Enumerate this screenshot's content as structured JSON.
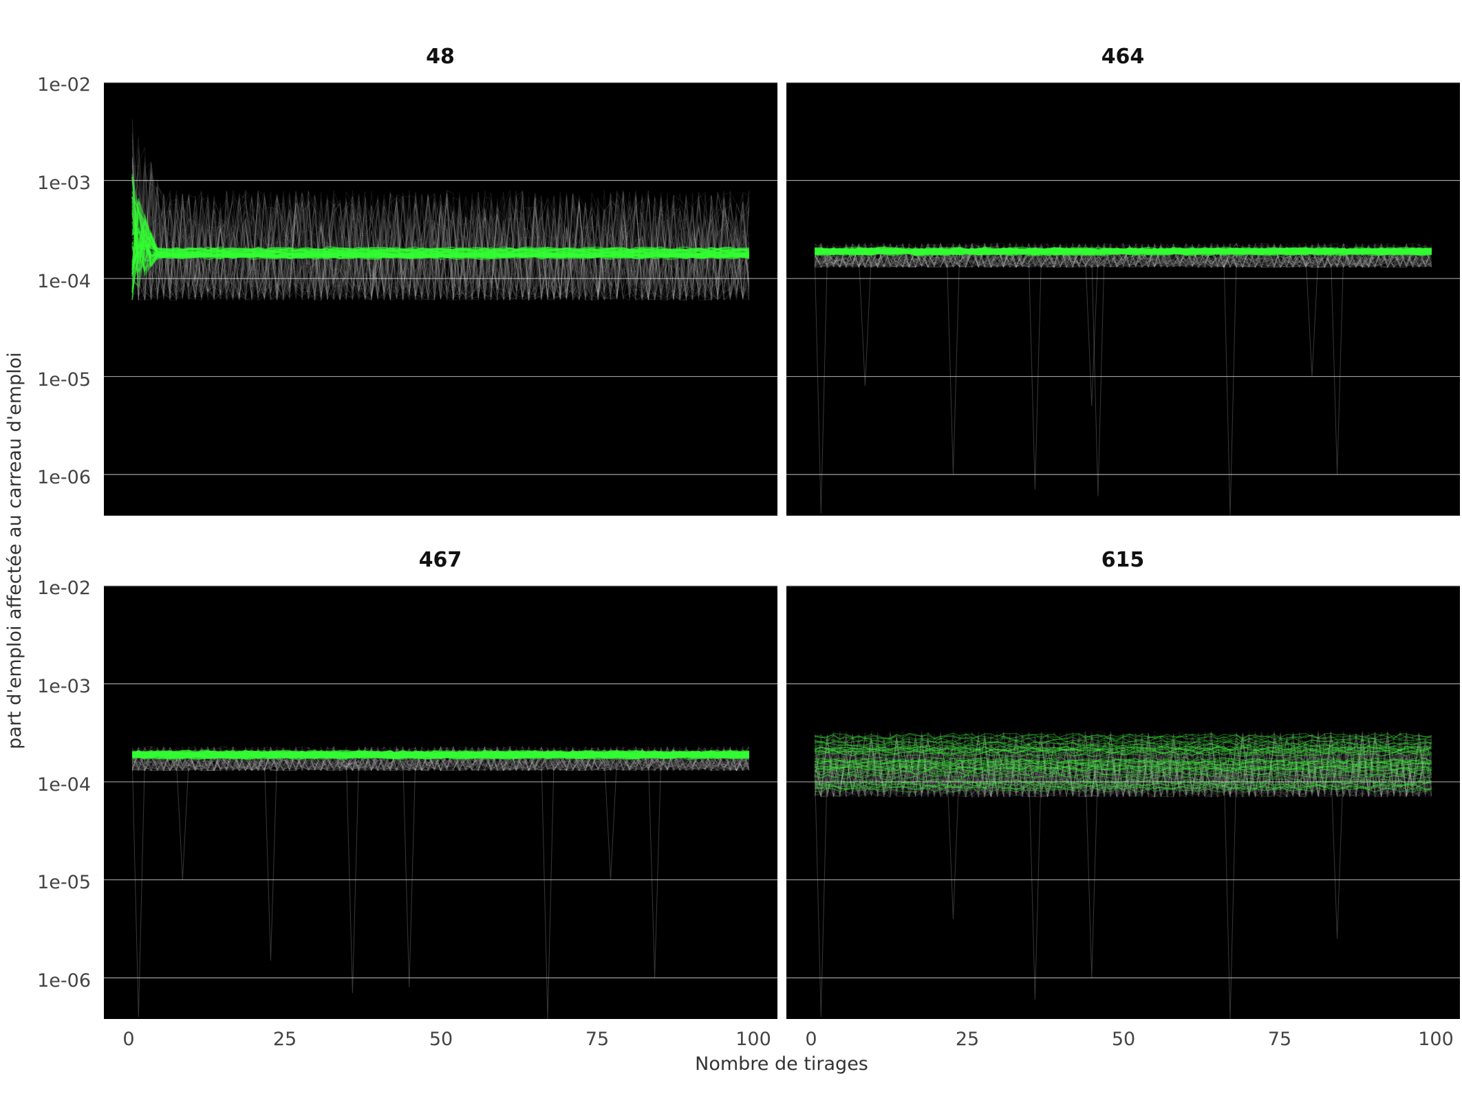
{
  "chart_data": {
    "type": "line",
    "xlabel": "Nombre de tirages",
    "ylabel": "part d'emploi affectée au carreau d'emploi",
    "x_range": [
      1,
      99
    ],
    "xlim": [
      -3.5,
      103.5
    ],
    "x_ticks": [
      0,
      25,
      50,
      75,
      100
    ],
    "y_scale": "log",
    "ylim": [
      3.8e-07,
      0.01
    ],
    "y_ticks": [
      1e-06,
      1e-05,
      0.0001,
      0.001,
      0.01
    ],
    "y_tick_labels": [
      "1e-06",
      "1e-05",
      "1e-04",
      "1e-03",
      "1e-02"
    ],
    "grid": true,
    "legend": "none",
    "background": "#000000",
    "colors": {
      "simulation": "#ffffff",
      "mean": "#33ff33"
    },
    "facets": [
      {
        "title": "48",
        "simulation_band": {
          "low": 6e-05,
          "high": 0.0008,
          "early_spike_max": 0.006
        },
        "mean_band": {
          "low": 0.00015,
          "high": 0.00022,
          "converges_from_x": 5
        },
        "dips": []
      },
      {
        "title": "464",
        "simulation_band": {
          "low": 0.00013,
          "high": 0.00023
        },
        "mean_band": {
          "low": 0.00017,
          "high": 0.00021
        },
        "dips": [
          {
            "x": 2,
            "y": 4e-07
          },
          {
            "x": 9,
            "y": 8e-06
          },
          {
            "x": 23,
            "y": 1e-06
          },
          {
            "x": 36,
            "y": 7e-07
          },
          {
            "x": 45,
            "y": 5e-06
          },
          {
            "x": 46,
            "y": 6e-07
          },
          {
            "x": 67,
            "y": 3.8e-07
          },
          {
            "x": 84,
            "y": 1e-06
          },
          {
            "x": 80,
            "y": 1e-05
          }
        ]
      },
      {
        "title": "467",
        "simulation_band": {
          "low": 0.00013,
          "high": 0.00023
        },
        "mean_band": {
          "low": 0.00017,
          "high": 0.00021
        },
        "dips": [
          {
            "x": 2,
            "y": 4e-07
          },
          {
            "x": 9,
            "y": 1e-05
          },
          {
            "x": 23,
            "y": 1.5e-06
          },
          {
            "x": 36,
            "y": 7e-07
          },
          {
            "x": 45,
            "y": 8e-07
          },
          {
            "x": 67,
            "y": 3.8e-07
          },
          {
            "x": 84,
            "y": 1e-06
          },
          {
            "x": 77,
            "y": 1e-05
          }
        ]
      },
      {
        "title": "615",
        "simulation_band": {
          "low": 7e-05,
          "high": 0.00033
        },
        "mean_band": {
          "low": 8e-05,
          "high": 0.0003,
          "spread_lines": true
        },
        "dips": [
          {
            "x": 2,
            "y": 4e-07
          },
          {
            "x": 23,
            "y": 4e-06
          },
          {
            "x": 36,
            "y": 6e-07
          },
          {
            "x": 45,
            "y": 1e-06
          },
          {
            "x": 67,
            "y": 3.8e-07
          },
          {
            "x": 84,
            "y": 2.5e-06
          }
        ]
      }
    ]
  }
}
